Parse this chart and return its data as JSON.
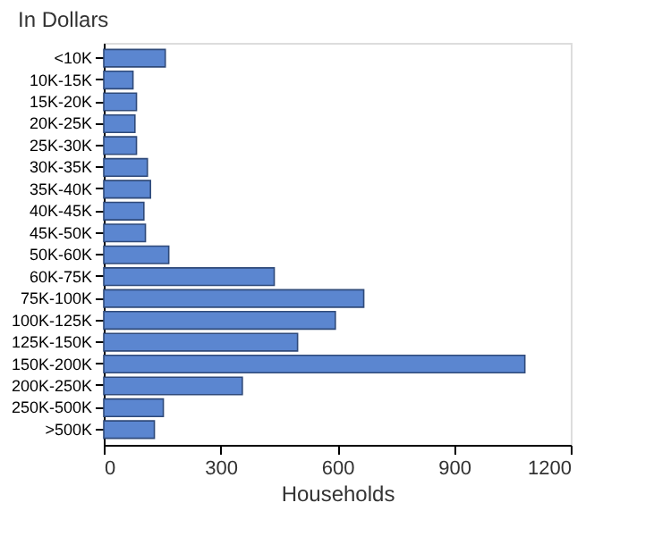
{
  "chart_data": {
    "type": "bar",
    "orientation": "horizontal",
    "ylabel": "In Dollars",
    "xlabel": "Households",
    "categories": [
      "<10K",
      "10K-15K",
      "15K-20K",
      "20K-25K",
      "25K-30K",
      "30K-35K",
      "35K-40K",
      "40K-45K",
      "45K-50K",
      "50K-60K",
      "60K-75K",
      "75K-100K",
      "100K-125K",
      "125K-150K",
      "150K-200K",
      "200K-250K",
      "250K-500K",
      ">500K"
    ],
    "values": [
      158,
      75,
      84,
      80,
      84,
      112,
      120,
      103,
      107,
      167,
      438,
      668,
      595,
      498,
      1082,
      356,
      153,
      130
    ],
    "color": "#5b86d0",
    "xlim": [
      0,
      1200
    ],
    "xticks": [
      0,
      300,
      600,
      900,
      1200
    ],
    "grid": false
  }
}
